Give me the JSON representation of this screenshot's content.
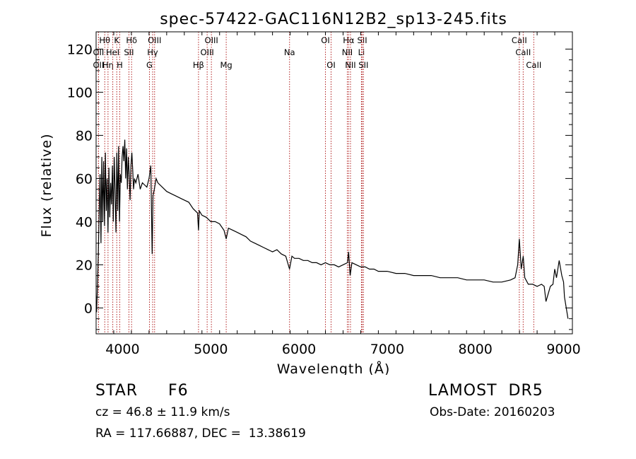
{
  "chart_data": {
    "type": "line",
    "title": "spec-57422-GAC116N12B2_sp13-245.fits",
    "xlabel": "Wavelength (Å)",
    "ylabel": "Flux (relative)",
    "xlim": [
      3700,
      9100
    ],
    "ylim": [
      -12,
      128
    ],
    "xticks": [
      4000,
      5000,
      6000,
      7000,
      8000,
      9000
    ],
    "yticks": [
      0,
      20,
      40,
      60,
      80,
      100,
      120
    ],
    "grid": false,
    "line_color": "#000000",
    "marker_color": "#b22222",
    "series": [
      {
        "x": [
          3705,
          3715,
          3725,
          3735,
          3745,
          3755,
          3765,
          3775,
          3785,
          3795,
          3805,
          3815,
          3825,
          3835,
          3845,
          3855,
          3865,
          3875,
          3885,
          3895,
          3905,
          3915,
          3925,
          3935,
          3945,
          3955,
          3965,
          3975,
          3985,
          3995,
          4005,
          4015,
          4025,
          4035,
          4045,
          4055,
          4065,
          4075,
          4085,
          4095,
          4105,
          4115,
          4125,
          4135,
          4150,
          4175,
          4200,
          4225,
          4250,
          4275,
          4300,
          4320,
          4335,
          4345,
          4360,
          4380,
          4400,
          4450,
          4500,
          4550,
          4600,
          4650,
          4700,
          4750,
          4800,
          4850,
          4861,
          4870,
          4900,
          4950,
          5000,
          5050,
          5100,
          5150,
          5175,
          5200,
          5250,
          5300,
          5350,
          5400,
          5450,
          5500,
          5550,
          5600,
          5650,
          5700,
          5750,
          5800,
          5850,
          5893,
          5920,
          5950,
          6000,
          6050,
          6100,
          6150,
          6200,
          6250,
          6300,
          6350,
          6400,
          6450,
          6500,
          6550,
          6563,
          6580,
          6600,
          6650,
          6700,
          6750,
          6800,
          6850,
          6900,
          6950,
          7000,
          7100,
          7200,
          7300,
          7400,
          7500,
          7600,
          7700,
          7800,
          7900,
          8000,
          8100,
          8200,
          8300,
          8400,
          8450,
          8480,
          8498,
          8520,
          8542,
          8560,
          8600,
          8650,
          8700,
          8750,
          8780,
          8800,
          8850,
          8880,
          8900,
          8920,
          8950,
          8980,
          9000,
          9010,
          9030,
          9050
        ],
        "y": [
          -2,
          10,
          25,
          45,
          62,
          30,
          70,
          40,
          68,
          38,
          72,
          45,
          60,
          35,
          65,
          42,
          58,
          48,
          66,
          40,
          70,
          55,
          35,
          72,
          45,
          75,
          40,
          62,
          58,
          70,
          75,
          68,
          78,
          60,
          74,
          55,
          70,
          62,
          50,
          66,
          72,
          64,
          55,
          60,
          58,
          62,
          55,
          58,
          57,
          56,
          60,
          66,
          25,
          52,
          55,
          60,
          58,
          56,
          54,
          53,
          52,
          51,
          50,
          49,
          46,
          44,
          36,
          45,
          43,
          42,
          40,
          40,
          39,
          36,
          32,
          37,
          36,
          35,
          34,
          33,
          31,
          30,
          29,
          28,
          27,
          26,
          27,
          25,
          24,
          18,
          24,
          23,
          23,
          22,
          22,
          21,
          21,
          20,
          21,
          20,
          20,
          19,
          20,
          21,
          26,
          15,
          21,
          20,
          19,
          19,
          18,
          18,
          17,
          17,
          17,
          16,
          16,
          15,
          15,
          15,
          14,
          14,
          14,
          13,
          13,
          13,
          12,
          12,
          13,
          14,
          20,
          32,
          18,
          24,
          14,
          11,
          11,
          10,
          11,
          10,
          3,
          10,
          11,
          18,
          14,
          22,
          15,
          12,
          5,
          0,
          -5
        ]
      }
    ],
    "spectral_lines": [
      {
        "label": "Hθ",
        "x": 3798,
        "row": 1
      },
      {
        "label": "OII",
        "x": 3727,
        "row": 2
      },
      {
        "label": "OII",
        "x": 3727,
        "row": 3
      },
      {
        "label": "Hη",
        "x": 3835,
        "row": 3
      },
      {
        "label": "HeI",
        "x": 3889,
        "row": 2
      },
      {
        "label": "K",
        "x": 3934,
        "row": 1
      },
      {
        "label": "H",
        "x": 3968,
        "row": 3
      },
      {
        "label": "SII",
        "x": 4072,
        "row": 2
      },
      {
        "label": "Hδ",
        "x": 4102,
        "row": 1
      },
      {
        "label": "G",
        "x": 4305,
        "row": 3
      },
      {
        "label": "OIII",
        "x": 4363,
        "row": 1
      },
      {
        "label": "Hγ",
        "x": 4341,
        "row": 2
      },
      {
        "label": "Hβ",
        "x": 4861,
        "row": 3
      },
      {
        "label": "OIII",
        "x": 4959,
        "row": 2
      },
      {
        "label": "OIII",
        "x": 5007,
        "row": 1
      },
      {
        "label": "Mg",
        "x": 5175,
        "row": 3
      },
      {
        "label": "Na",
        "x": 5893,
        "row": 2
      },
      {
        "label": "OI",
        "x": 6300,
        "row": 1
      },
      {
        "label": "OI",
        "x": 6364,
        "row": 3
      },
      {
        "label": "Hα",
        "x": 6563,
        "row": 1
      },
      {
        "label": "NII",
        "x": 6548,
        "row": 2
      },
      {
        "label": "NII",
        "x": 6584,
        "row": 3
      },
      {
        "label": "SII",
        "x": 6717,
        "row": 1
      },
      {
        "label": "Li",
        "x": 6708,
        "row": 2
      },
      {
        "label": "SII",
        "x": 6731,
        "row": 3
      },
      {
        "label": "CaII",
        "x": 8498,
        "row": 1
      },
      {
        "label": "CaII",
        "x": 8542,
        "row": 2
      },
      {
        "label": "CaII",
        "x": 8662,
        "row": 3
      }
    ]
  },
  "info": {
    "object_class": "STAR",
    "subclass": "F6",
    "survey": "LAMOST  DR5",
    "redshift": "cz = 46.8 ± 11.9 km/s",
    "obs_date": "Obs-Date: 20160203",
    "coords": "RA = 117.66887, DEC =  13.38619"
  }
}
